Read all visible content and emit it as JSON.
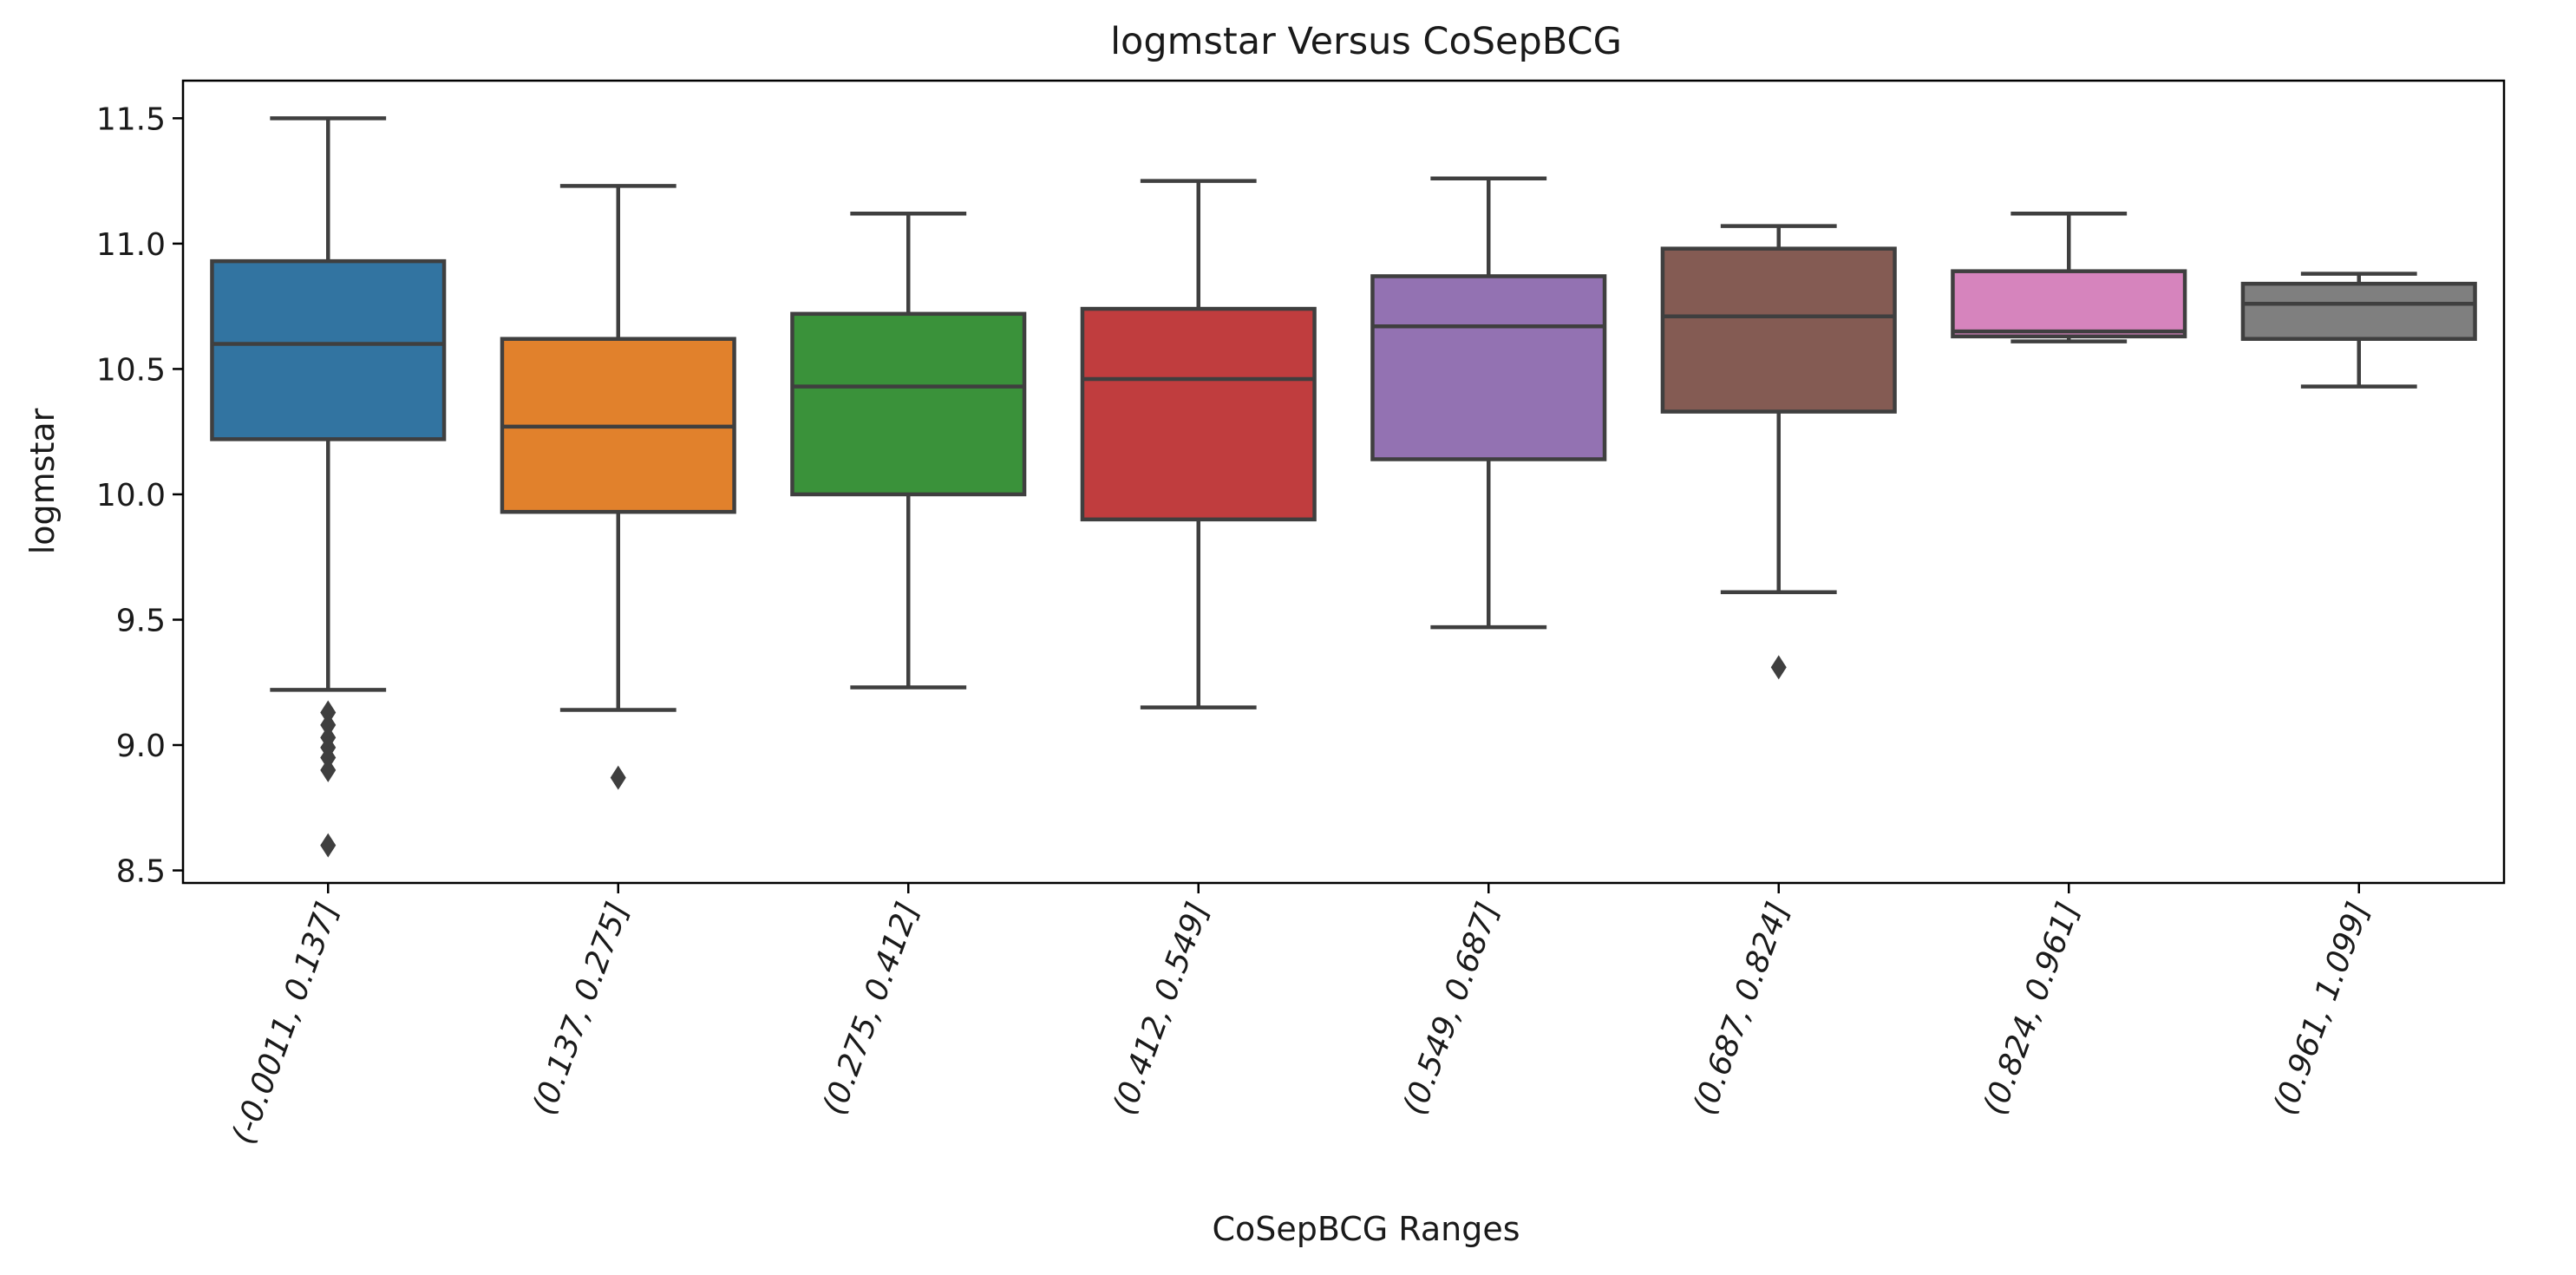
{
  "chart_data": {
    "type": "box",
    "title": "logmstar Versus CoSepBCG",
    "xlabel": "CoSepBCG Ranges",
    "ylabel": "logmstar",
    "ylim": [
      8.45,
      11.65
    ],
    "yticks": [
      "8.5",
      "9.0",
      "9.5",
      "10.0",
      "10.5",
      "11.0",
      "11.5"
    ],
    "grid": false,
    "categories": [
      "(-0.0011, 0.137]",
      "(0.137, 0.275]",
      "(0.275, 0.412]",
      "(0.412, 0.549]",
      "(0.549, 0.687]",
      "(0.687, 0.824]",
      "(0.824, 0.961]",
      "(0.961, 1.099]"
    ],
    "boxes": [
      {
        "whisker_low": 9.22,
        "q1": 10.22,
        "median": 10.6,
        "q3": 10.93,
        "whisker_high": 11.5,
        "outliers": [
          9.13,
          9.08,
          9.03,
          8.99,
          8.95,
          8.9,
          8.6
        ],
        "color": "#3274a1"
      },
      {
        "whisker_low": 9.14,
        "q1": 9.93,
        "median": 10.27,
        "q3": 10.62,
        "whisker_high": 11.23,
        "outliers": [
          8.87
        ],
        "color": "#e1812c"
      },
      {
        "whisker_low": 9.23,
        "q1": 10.0,
        "median": 10.43,
        "q3": 10.72,
        "whisker_high": 11.12,
        "outliers": [],
        "color": "#3a923a"
      },
      {
        "whisker_low": 9.15,
        "q1": 9.9,
        "median": 10.46,
        "q3": 10.74,
        "whisker_high": 11.25,
        "outliers": [],
        "color": "#c03d3e"
      },
      {
        "whisker_low": 9.47,
        "q1": 10.14,
        "median": 10.67,
        "q3": 10.87,
        "whisker_high": 11.26,
        "outliers": [],
        "color": "#9372b2"
      },
      {
        "whisker_low": 9.61,
        "q1": 10.33,
        "median": 10.71,
        "q3": 10.98,
        "whisker_high": 11.07,
        "outliers": [
          9.31
        ],
        "color": "#845b53"
      },
      {
        "whisker_low": 10.61,
        "q1": 10.63,
        "median": 10.65,
        "q3": 10.89,
        "whisker_high": 11.12,
        "outliers": [],
        "color": "#d684bd"
      },
      {
        "whisker_low": 10.43,
        "q1": 10.62,
        "median": 10.76,
        "q3": 10.84,
        "whisker_high": 10.88,
        "outliers": [],
        "color": "#7f7f7f"
      }
    ]
  }
}
